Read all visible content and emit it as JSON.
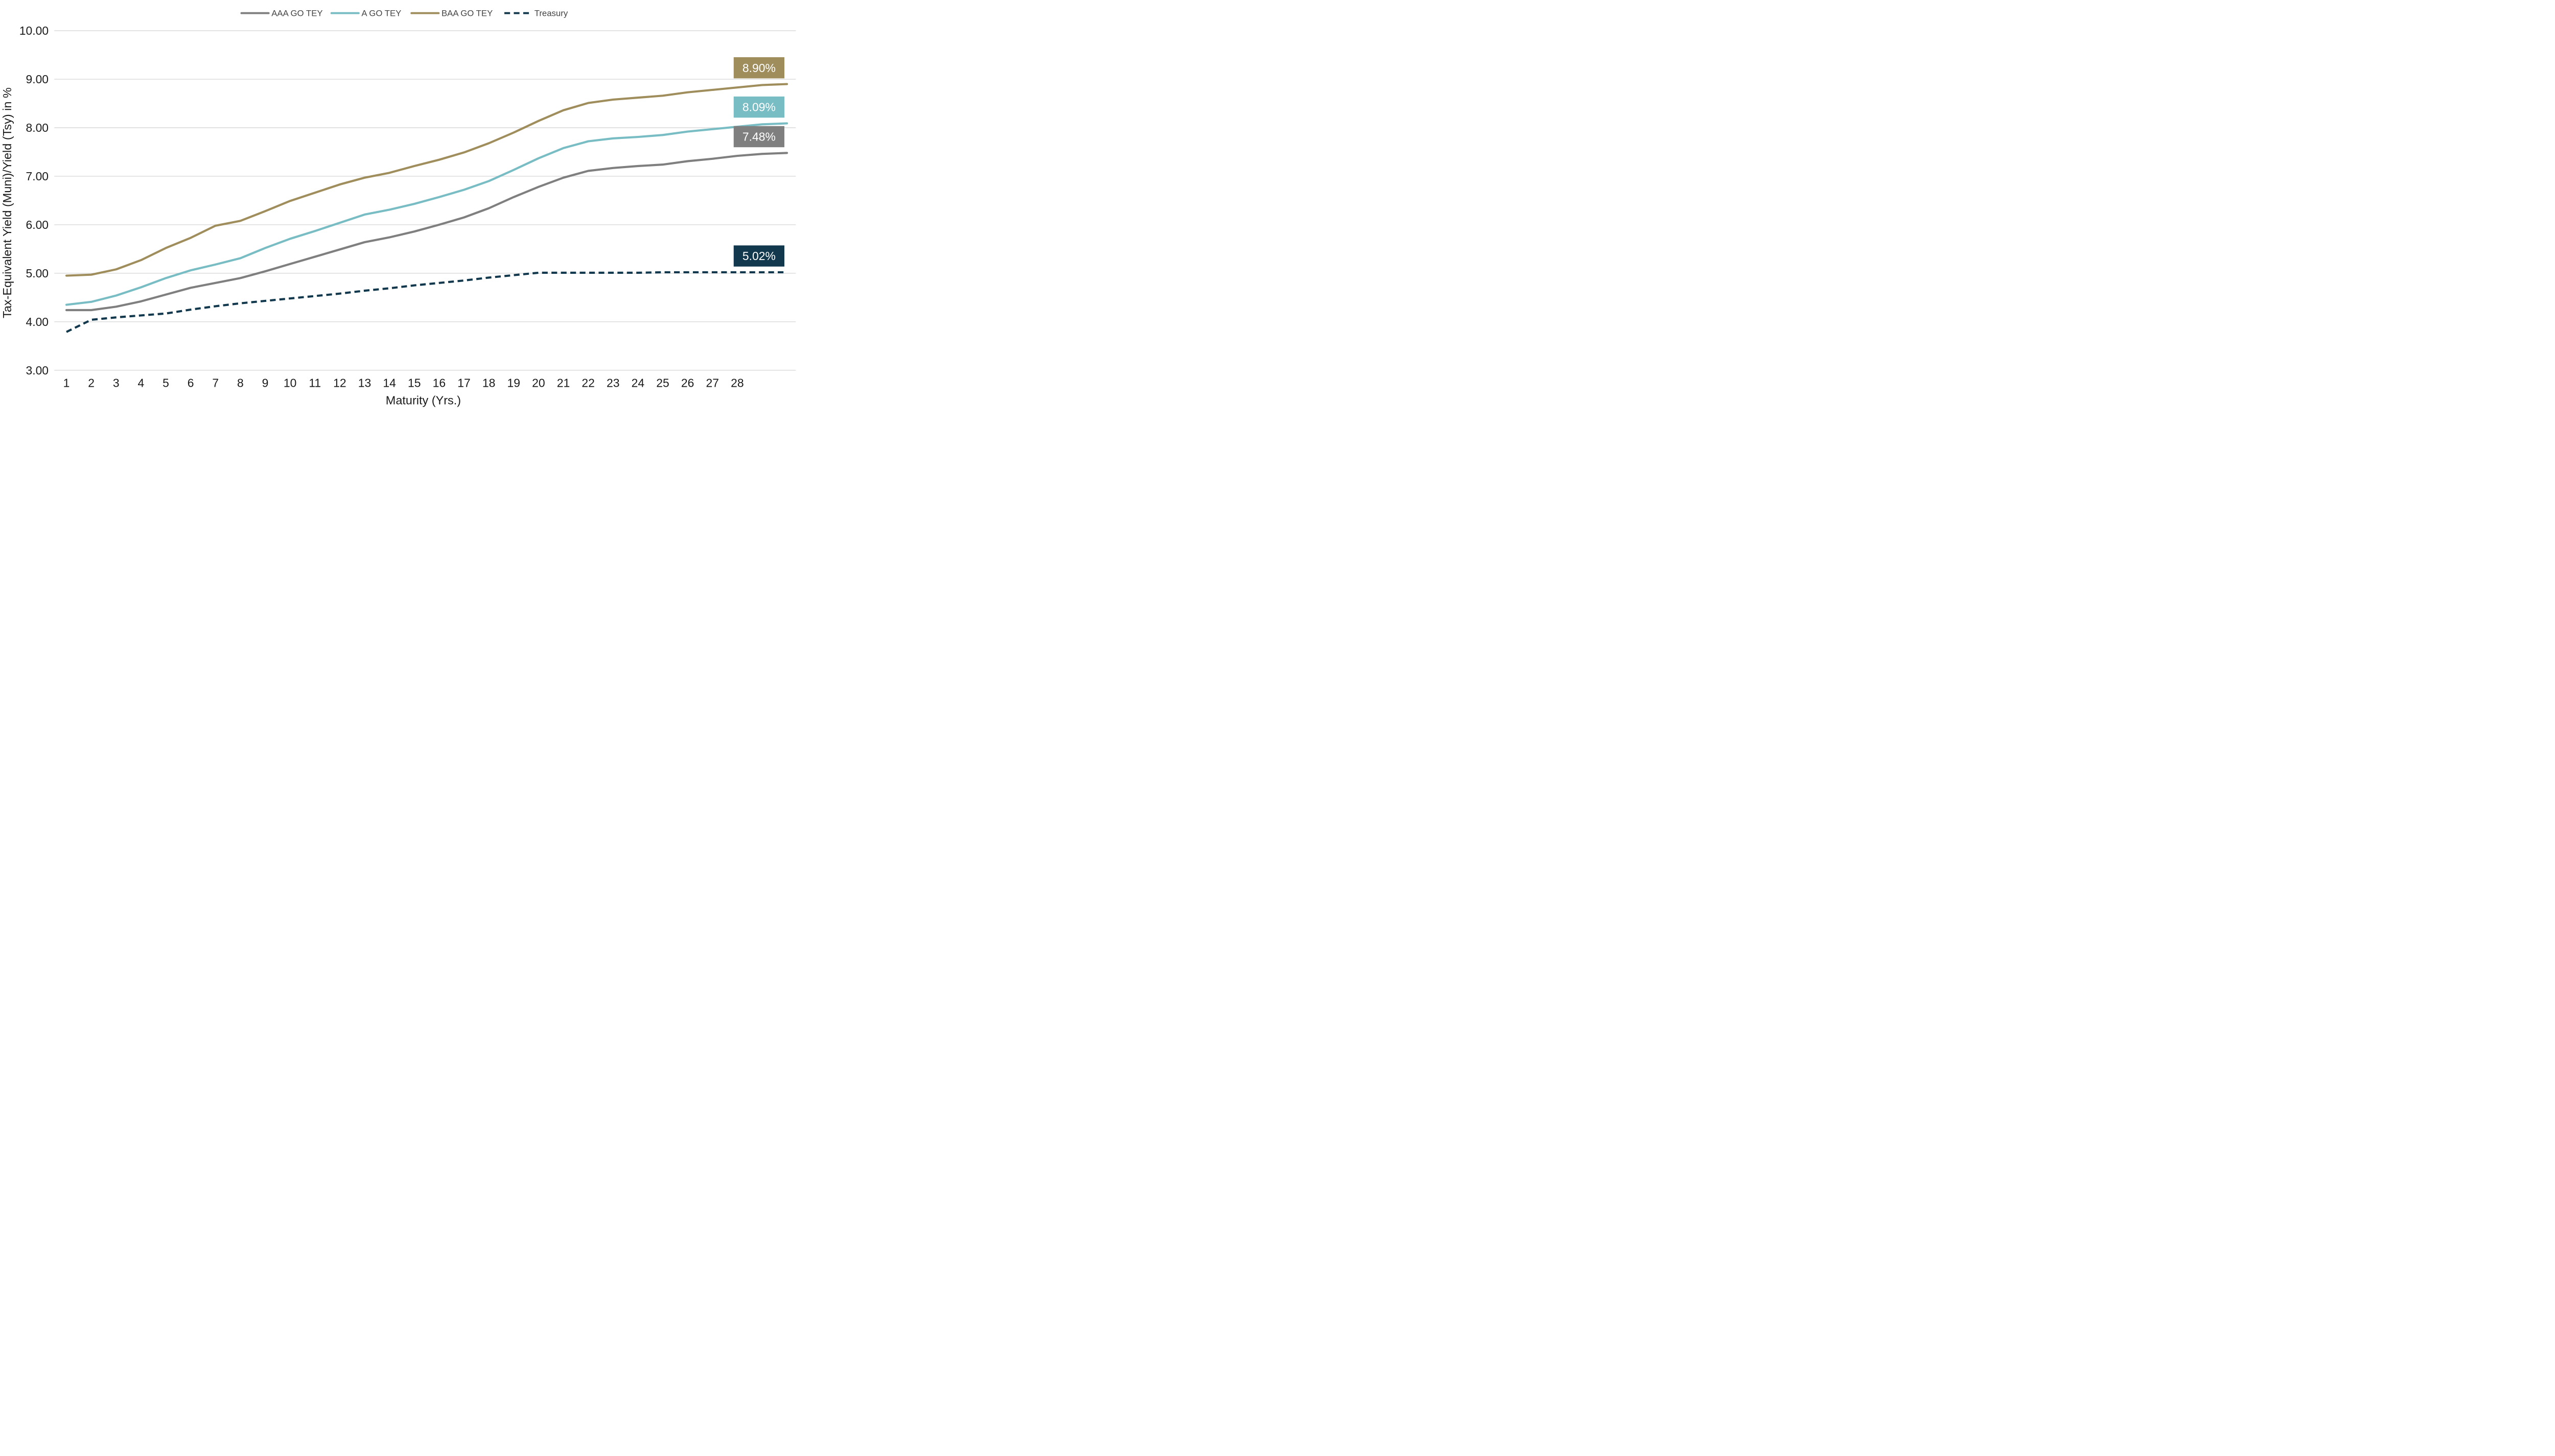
{
  "chart_data": {
    "type": "line",
    "title": "",
    "xlabel": "Maturity (Yrs.)",
    "ylabel": "Tax-Equivalent Yield (Muni)/Yield (Tsy) in %",
    "ylim": [
      3,
      10
    ],
    "yticks": [
      "3.00",
      "4.00",
      "5.00",
      "6.00",
      "7.00",
      "8.00",
      "9.00",
      "10.00"
    ],
    "x_tick_labels": [
      "1",
      "2",
      "3",
      "4",
      "5",
      "6",
      "7",
      "8",
      "9",
      "10",
      "11",
      "12",
      "13",
      "14",
      "15",
      "16",
      "17",
      "18",
      "19",
      "20",
      "21",
      "22",
      "23",
      "24",
      "25",
      "26",
      "27",
      "28"
    ],
    "x": [
      1,
      2,
      3,
      4,
      5,
      6,
      7,
      8,
      9,
      10,
      11,
      12,
      13,
      14,
      15,
      16,
      17,
      18,
      19,
      20,
      21,
      22,
      23,
      24,
      25,
      26,
      27,
      28,
      29,
      30
    ],
    "grid": true,
    "legend_position": "top",
    "series": [
      {
        "name": "AAA GO TEY",
        "color": "#7f7f7f",
        "dash": false,
        "end_label": "7.48%",
        "values": [
          4.24,
          4.24,
          4.31,
          4.42,
          4.56,
          4.7,
          4.8,
          4.9,
          5.04,
          5.19,
          5.34,
          5.49,
          5.64,
          5.74,
          5.86,
          6.0,
          6.15,
          6.34,
          6.57,
          6.78,
          6.97,
          7.11,
          7.17,
          7.21,
          7.24,
          7.31,
          7.36,
          7.42,
          7.46,
          7.48
        ]
      },
      {
        "name": "A GO TEY",
        "color": "#78bcc4",
        "dash": false,
        "end_label": "8.09%",
        "values": [
          4.35,
          4.41,
          4.54,
          4.71,
          4.9,
          5.06,
          5.18,
          5.31,
          5.52,
          5.71,
          5.87,
          6.04,
          6.21,
          6.31,
          6.43,
          6.57,
          6.72,
          6.9,
          7.13,
          7.37,
          7.58,
          7.72,
          7.78,
          7.81,
          7.85,
          7.92,
          7.97,
          8.02,
          8.07,
          8.09
        ]
      },
      {
        "name": "BAA GO TEY",
        "color": "#a08d5c",
        "dash": false,
        "end_label": "8.90%",
        "values": [
          4.95,
          4.97,
          5.08,
          5.27,
          5.52,
          5.73,
          5.98,
          6.08,
          6.28,
          6.49,
          6.66,
          6.83,
          6.97,
          7.07,
          7.21,
          7.34,
          7.49,
          7.68,
          7.9,
          8.14,
          8.36,
          8.51,
          8.58,
          8.62,
          8.66,
          8.73,
          8.78,
          8.83,
          8.88,
          8.9
        ]
      },
      {
        "name": "Treasury",
        "color": "#11384d",
        "dash": true,
        "end_label": "5.02%",
        "values": [
          3.79,
          4.04,
          4.09,
          4.13,
          4.17,
          4.25,
          4.32,
          4.38,
          4.43,
          4.48,
          4.53,
          4.58,
          4.64,
          4.69,
          4.75,
          4.8,
          4.85,
          4.91,
          4.96,
          5.01,
          5.01,
          5.01,
          5.01,
          5.01,
          5.02,
          5.02,
          5.02,
          5.02,
          5.02,
          5.02
        ]
      }
    ]
  }
}
